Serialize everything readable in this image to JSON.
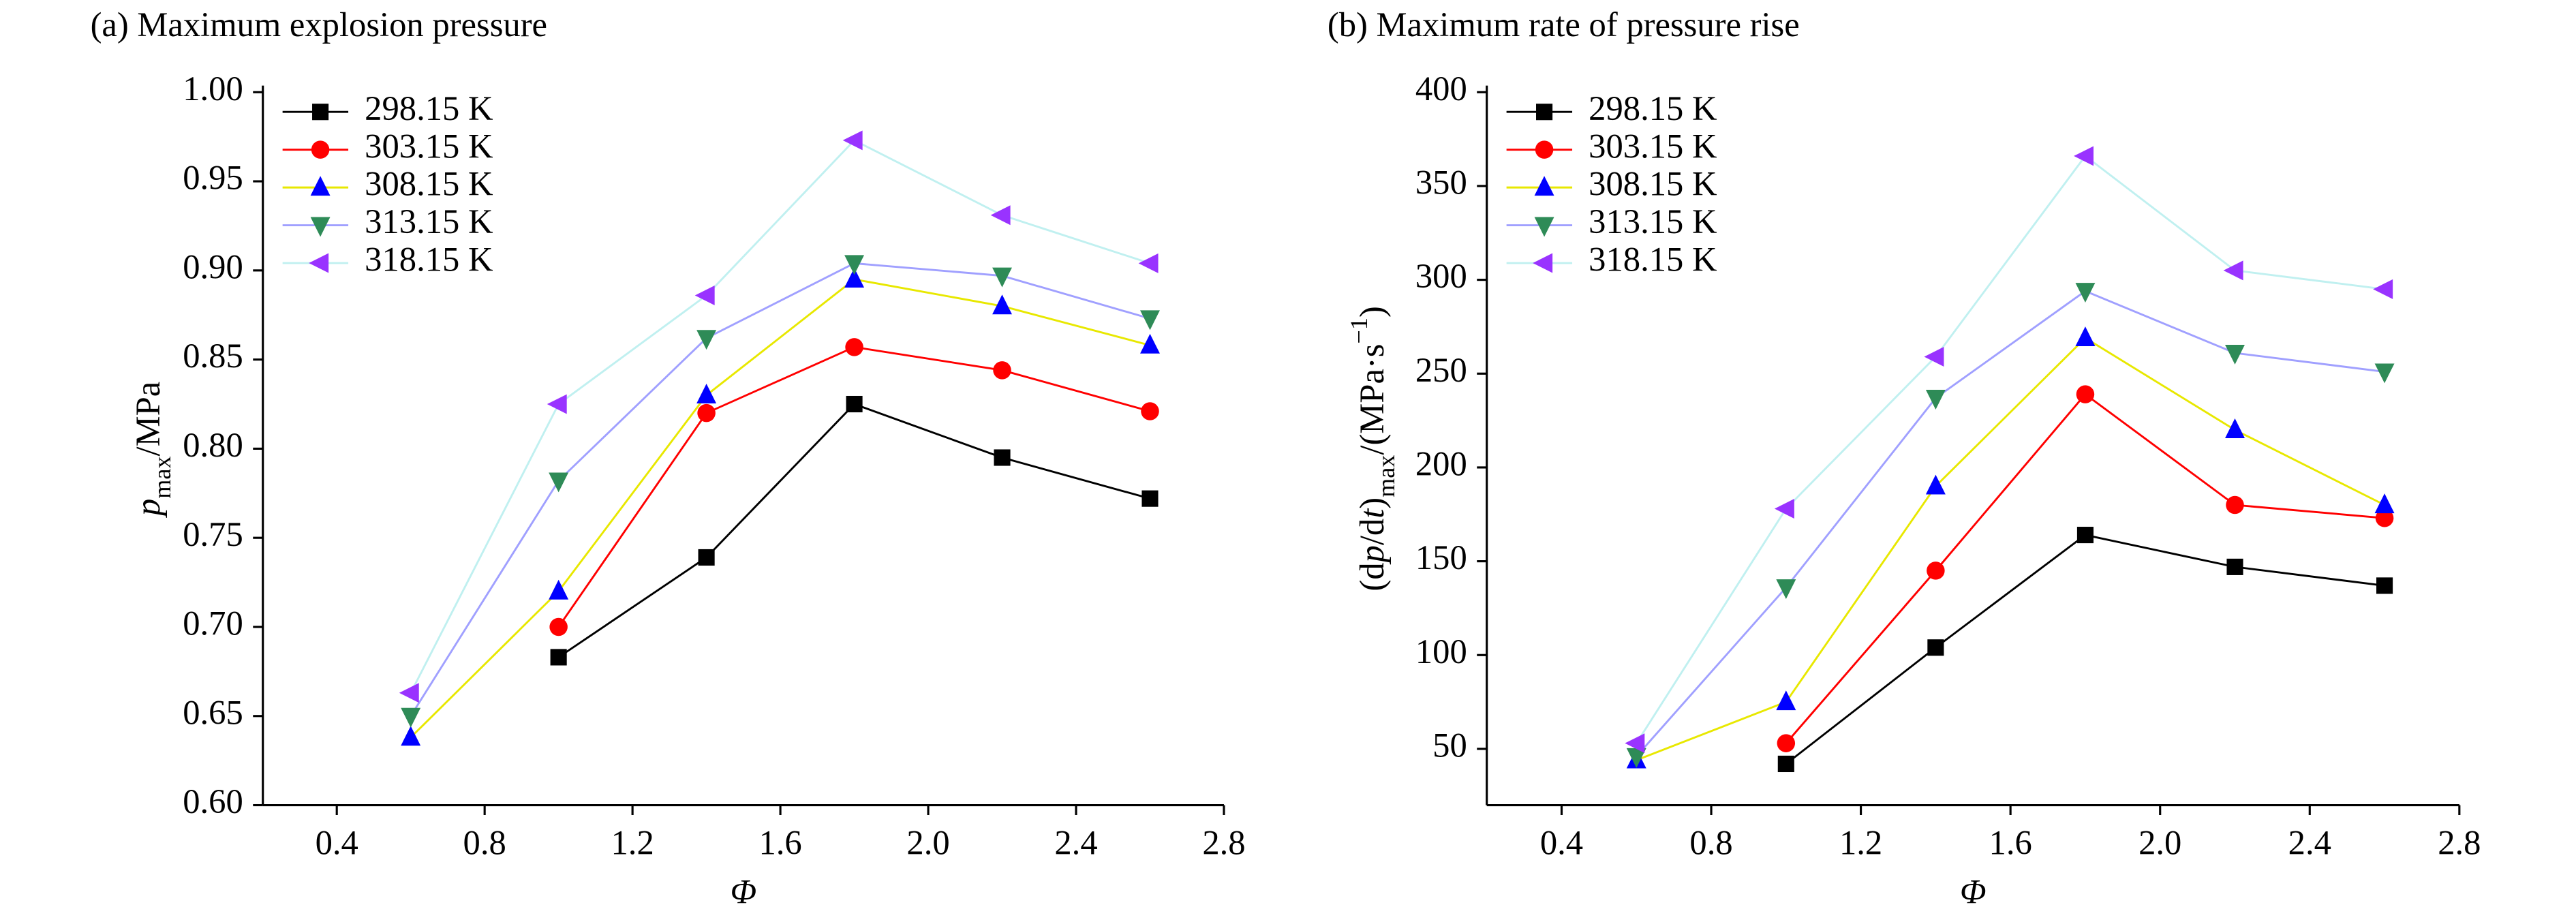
{
  "chart_data": [
    {
      "type": "line",
      "title": "(a) Maximum explosion pressure",
      "xlabel": "Φ",
      "ylabel": [
        {
          "text": "p",
          "style": "italic"
        },
        {
          "text": "max",
          "style": "sub"
        },
        {
          "text": "/MPa",
          "style": "normal"
        }
      ],
      "x": [
        0.6,
        1.0,
        1.4,
        1.8,
        2.2,
        2.6
      ],
      "xlim": [
        0.2,
        2.8
      ],
      "xticks": [
        0.4,
        0.8,
        1.2,
        1.6,
        {
          "value": 2.0,
          "label": "2.0"
        },
        2.4,
        2.8
      ],
      "ylim": [
        0.6,
        1.0
      ],
      "yticks": [
        {
          "value": 0.6,
          "label": "0.60"
        },
        0.65,
        {
          "value": 0.7,
          "label": "0.70"
        },
        0.75,
        {
          "value": 0.8,
          "label": "0.80"
        },
        0.85,
        {
          "value": 0.9,
          "label": "0.90"
        },
        0.95,
        {
          "value": 1.0,
          "label": "1.00"
        }
      ],
      "legend": "upper left",
      "series": [
        {
          "name": "298.15 K",
          "color": "#000000",
          "marker_color": "#000000",
          "marker": "square",
          "values": [
            null,
            0.683,
            0.739,
            0.825,
            0.795,
            0.772
          ]
        },
        {
          "name": "303.15 K",
          "color": "#ff0000",
          "marker_color": "#ff0000",
          "marker": "circle",
          "values": [
            null,
            0.7,
            0.82,
            0.857,
            0.844,
            0.821
          ]
        },
        {
          "name": "308.15 K",
          "color": "#e8e800",
          "marker_color": "#0000ff",
          "marker": "triangle-up",
          "values": [
            0.638,
            0.72,
            0.83,
            0.895,
            0.88,
            0.858
          ]
        },
        {
          "name": "313.15 K",
          "color": "#a0a0ff",
          "marker_color": "#2e8b57",
          "marker": "triangle-down",
          "values": [
            0.65,
            0.782,
            0.862,
            0.904,
            0.897,
            0.873
          ]
        },
        {
          "name": "318.15 K",
          "color": "#c0f0f0",
          "marker_color": "#9933ff",
          "marker": "triangle-left",
          "values": [
            0.663,
            0.825,
            0.886,
            0.973,
            0.931,
            0.904
          ]
        }
      ]
    },
    {
      "type": "line",
      "title": "(b) Maximum rate of pressure rise",
      "xlabel": "Φ",
      "ylabel": [
        {
          "text": "(d",
          "style": "normal"
        },
        {
          "text": "p",
          "style": "italic"
        },
        {
          "text": "/d",
          "style": "normal"
        },
        {
          "text": "t",
          "style": "italic"
        },
        {
          "text": ")",
          "style": "normal"
        },
        {
          "text": "max",
          "style": "sub"
        },
        {
          "text": "/(MPa·s",
          "style": "normal"
        },
        {
          "text": "−1",
          "style": "sup"
        },
        {
          "text": ")",
          "style": "normal"
        }
      ],
      "x": [
        0.6,
        1.0,
        1.4,
        1.8,
        2.2,
        2.6
      ],
      "xlim": [
        0.2,
        2.8
      ],
      "xticks": [
        0.4,
        0.8,
        1.2,
        1.6,
        {
          "value": 2.0,
          "label": "2.0"
        },
        2.4,
        2.8
      ],
      "ylim": [
        20,
        400
      ],
      "yticks": [
        50,
        100,
        150,
        200,
        250,
        300,
        350,
        400
      ],
      "legend": "upper left",
      "series": [
        {
          "name": "298.15 K",
          "color": "#000000",
          "marker_color": "#000000",
          "marker": "square",
          "values": [
            null,
            42,
            104,
            164,
            147,
            137
          ]
        },
        {
          "name": "303.15 K",
          "color": "#ff0000",
          "marker_color": "#ff0000",
          "marker": "circle",
          "values": [
            null,
            53,
            145,
            239,
            180,
            173
          ]
        },
        {
          "name": "308.15 K",
          "color": "#e8e800",
          "marker_color": "#0000ff",
          "marker": "triangle-up",
          "values": [
            44,
            75,
            190,
            269,
            220,
            180
          ]
        },
        {
          "name": "313.15 K",
          "color": "#a0a0ff",
          "marker_color": "#2e8b57",
          "marker": "triangle-down",
          "values": [
            46,
            136,
            237,
            294,
            261,
            251
          ]
        },
        {
          "name": "318.15 K",
          "color": "#c0f0f0",
          "marker_color": "#9933ff",
          "marker": "triangle-left",
          "values": [
            53,
            178,
            259,
            366,
            305,
            295
          ]
        }
      ]
    }
  ]
}
